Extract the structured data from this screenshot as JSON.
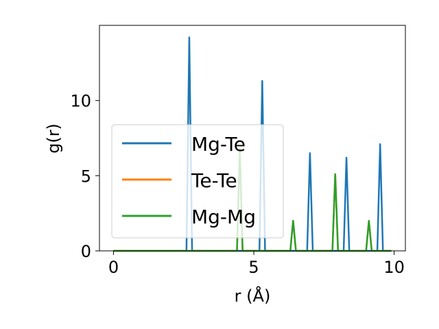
{
  "chart_data": {
    "type": "line",
    "title": "",
    "xlabel": "r (Å)",
    "ylabel": "g(r)",
    "xlim": [
      -0.5,
      10.4
    ],
    "ylim": [
      0,
      15.0
    ],
    "xticks": [
      0,
      5,
      10
    ],
    "xtick_labels": [
      "0",
      "5",
      "10"
    ],
    "yticks": [
      0,
      5,
      10
    ],
    "ytick_labels": [
      "0",
      "5",
      "10"
    ],
    "legend_position": "center-left",
    "series": [
      {
        "name": "Mg-Te",
        "color": "#1f77b4",
        "x": [
          0,
          2.6,
          2.7,
          2.8,
          5.2,
          5.3,
          5.4,
          6.9,
          7.0,
          7.1,
          8.2,
          8.3,
          8.4,
          9.4,
          9.5,
          9.6,
          9.9
        ],
        "y": [
          0,
          0,
          14.2,
          0,
          0,
          11.3,
          0,
          0,
          6.5,
          0,
          0,
          6.2,
          0,
          0,
          7.1,
          0,
          0
        ]
      },
      {
        "name": "Te-Te",
        "color": "#ff7f0e",
        "x": [
          0,
          4.4,
          4.5,
          4.6,
          6.3,
          6.4,
          6.5,
          7.8,
          7.9,
          8.0,
          9.0,
          9.1,
          9.2,
          9.9
        ],
        "y": [
          0,
          0,
          6.8,
          0,
          0,
          2.0,
          0,
          0,
          5.1,
          0,
          0,
          2.0,
          0,
          0
        ]
      },
      {
        "name": "Mg-Mg",
        "color": "#2ca02c",
        "x": [
          0,
          4.4,
          4.5,
          4.6,
          6.3,
          6.4,
          6.5,
          7.8,
          7.9,
          8.0,
          9.0,
          9.1,
          9.2,
          9.9
        ],
        "y": [
          0,
          0,
          6.8,
          0,
          0,
          2.0,
          0,
          0,
          5.1,
          0,
          0,
          2.0,
          0,
          0
        ]
      }
    ]
  }
}
